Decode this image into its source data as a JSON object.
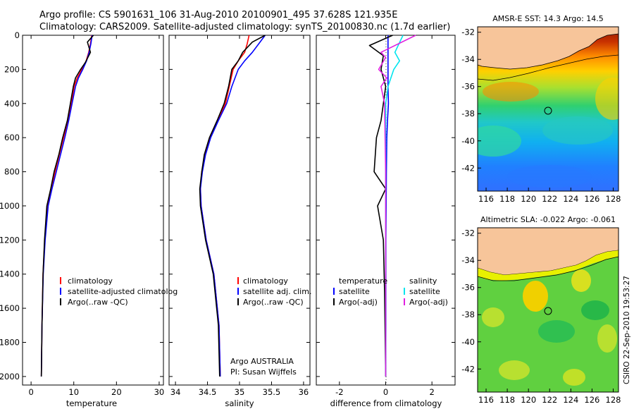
{
  "title_line1": "Argo profile: CS 5901631_106 31-Aug-2010 20100901_495 37.628S 121.935E",
  "title_line2": "Climatology: CARS2009. Satellite-adjusted climatology: synTS_20100830.nc (1.7d earlier)",
  "credit_line1": "Argo AUSTRALIA",
  "credit_line2": "PI: Susan Wijffels",
  "stamp": "CSIRO 22-Sep-2010 19:53:27",
  "colors": {
    "red": "#ff0000",
    "blue": "#0000ff",
    "black": "#000000",
    "cyan": "#00e5ee",
    "magenta": "#e020e0"
  },
  "depth_ticks": [
    "0",
    "200",
    "400",
    "600",
    "800",
    "1000",
    "1200",
    "1400",
    "1600",
    "1800",
    "2000"
  ],
  "chart_data": [
    {
      "type": "line",
      "xlabel": "temperature",
      "ylim": [
        2050,
        0
      ],
      "xlim": [
        -2,
        31
      ],
      "xticks": [
        "0",
        "10",
        "20",
        "30"
      ],
      "legend": [
        "climatology",
        "satellite-adjusted climatolog",
        "Argo(..raw -QC)"
      ],
      "series": [
        {
          "name": "climatology",
          "color": "red",
          "x": [
            14.2,
            13.9,
            13.5,
            12.9,
            11.9,
            10.8,
            10.1,
            9.4,
            8.6,
            7.6,
            6.6,
            5.6,
            4.7,
            3.8,
            3.2,
            2.8,
            2.55,
            2.4
          ],
          "y": [
            0,
            50,
            100,
            150,
            200,
            250,
            300,
            400,
            500,
            600,
            700,
            800,
            900,
            1000,
            1200,
            1400,
            1700,
            2000
          ]
        },
        {
          "name": "satellite-adjusted climatolog",
          "color": "blue",
          "x": [
            14.3,
            14.0,
            13.6,
            13.0,
            12.1,
            11.1,
            10.4,
            9.6,
            8.8,
            7.9,
            6.9,
            5.9,
            4.9,
            4.0,
            3.3,
            2.85,
            2.55,
            2.4
          ],
          "y": [
            0,
            50,
            100,
            150,
            200,
            250,
            300,
            400,
            500,
            600,
            700,
            800,
            900,
            1000,
            1200,
            1400,
            1700,
            2000
          ]
        },
        {
          "name": "Argo(..raw -QC)",
          "color": "black",
          "x": [
            14.6,
            13.2,
            13.9,
            12.7,
            11.6,
            10.4,
            9.9,
            9.2,
            8.5,
            7.4,
            6.5,
            5.4,
            4.6,
            3.7,
            3.15,
            2.8,
            2.55,
            2.4
          ],
          "y": [
            0,
            40,
            100,
            160,
            200,
            250,
            300,
            400,
            500,
            600,
            700,
            800,
            900,
            1000,
            1200,
            1400,
            1700,
            2000
          ]
        }
      ]
    },
    {
      "type": "line",
      "xlabel": "salinity",
      "ylim": [
        2050,
        0
      ],
      "xlim": [
        33.9,
        36.1
      ],
      "xticks": [
        "34",
        "34.5",
        "35",
        "35.5",
        "36"
      ],
      "legend": [
        "climatology",
        "satellite adj. clim.",
        "Argo(..raw -QC)"
      ],
      "series": [
        {
          "name": "climatology",
          "color": "red",
          "x": [
            35.15,
            35.12,
            35.08,
            34.98,
            34.9,
            34.84,
            34.78,
            34.66,
            34.54,
            34.46,
            34.41,
            34.39,
            34.4,
            34.48,
            34.6,
            34.68,
            34.7
          ],
          "y": [
            0,
            50,
            100,
            150,
            200,
            300,
            400,
            500,
            600,
            700,
            800,
            900,
            1000,
            1200,
            1400,
            1700,
            2000
          ]
        },
        {
          "name": "satellite adj. clim.",
          "color": "blue",
          "x": [
            35.4,
            35.3,
            35.2,
            35.08,
            34.98,
            34.88,
            34.8,
            34.67,
            34.55,
            34.47,
            34.42,
            34.39,
            34.4,
            34.48,
            34.6,
            34.68,
            34.7
          ],
          "y": [
            0,
            50,
            100,
            150,
            200,
            300,
            400,
            500,
            600,
            700,
            800,
            900,
            1000,
            1200,
            1400,
            1700,
            2000
          ]
        },
        {
          "name": "Argo(..raw -QC)",
          "color": "black",
          "x": [
            35.4,
            35.2,
            35.05,
            34.98,
            34.88,
            34.83,
            34.76,
            34.65,
            34.53,
            34.45,
            34.41,
            34.38,
            34.39,
            34.47,
            34.59,
            34.67,
            34.69
          ],
          "y": [
            0,
            40,
            100,
            150,
            200,
            300,
            400,
            500,
            600,
            700,
            800,
            900,
            1000,
            1200,
            1400,
            1700,
            2000
          ]
        }
      ]
    },
    {
      "type": "line",
      "xlabel": "difference from climatology",
      "ylim": [
        2050,
        0
      ],
      "xlim": [
        -3,
        3
      ],
      "xticks": [
        "-2",
        "0",
        "2"
      ],
      "legend_left": [
        "temperature",
        "satellite",
        "Argo(-adj)"
      ],
      "legend_right": [
        "salinity",
        "satellite",
        "Argo(-adj)"
      ],
      "series": [
        {
          "name": "temperature satellite",
          "color": "blue",
          "x": [
            0.1,
            0.1,
            0.1,
            0.1,
            0.12,
            0.08,
            0.05,
            0.03,
            0.02,
            0.01,
            0.01,
            0.01,
            0.0
          ],
          "y": [
            0,
            100,
            200,
            300,
            400,
            500,
            600,
            800,
            1000,
            1200,
            1400,
            1700,
            2000
          ]
        },
        {
          "name": "temperature Argo(-adj)",
          "color": "black",
          "x": [
            0.3,
            -0.7,
            -0.1,
            -0.2,
            0.0,
            -0.1,
            -0.2,
            -0.4,
            -0.5,
            0.0,
            -0.35,
            -0.1,
            -0.05,
            0.0
          ],
          "y": [
            0,
            60,
            120,
            200,
            300,
            400,
            500,
            600,
            800,
            900,
            1000,
            1200,
            1500,
            2000
          ]
        },
        {
          "name": "salinity satellite",
          "color": "cyan",
          "x": [
            0.75,
            0.4,
            0.6,
            0.35,
            0.1,
            0.0,
            0.0,
            0.0,
            0.0,
            0.0
          ],
          "y": [
            0,
            100,
            150,
            200,
            300,
            400,
            800,
            1200,
            1600,
            2000
          ]
        },
        {
          "name": "salinity Argo(-adj)",
          "color": "magenta",
          "x": [
            1.3,
            -0.2,
            0.0,
            -0.3,
            0.05,
            -0.2,
            -0.05,
            0.0,
            0.0,
            0.0
          ],
          "y": [
            0,
            100,
            130,
            200,
            250,
            300,
            400,
            800,
            1400,
            2000
          ]
        }
      ]
    },
    {
      "type": "heatmap",
      "title": "AMSR-E SST: 14.3 Argo: 14.5",
      "xticks": [
        "116",
        "118",
        "120",
        "122",
        "124",
        "126",
        "128"
      ],
      "yticks": [
        "-32",
        "-34",
        "-36",
        "-38",
        "-40",
        "-42"
      ],
      "marker": {
        "lon": 121.935,
        "lat": -37.628
      }
    },
    {
      "type": "heatmap",
      "title": "Altimetric SLA: -0.022 Argo: -0.061",
      "xticks": [
        "116",
        "118",
        "120",
        "122",
        "124",
        "126",
        "128"
      ],
      "yticks": [
        "-32",
        "-34",
        "-36",
        "-38",
        "-40",
        "-42"
      ],
      "marker": {
        "lon": 121.935,
        "lat": -37.628
      }
    }
  ]
}
